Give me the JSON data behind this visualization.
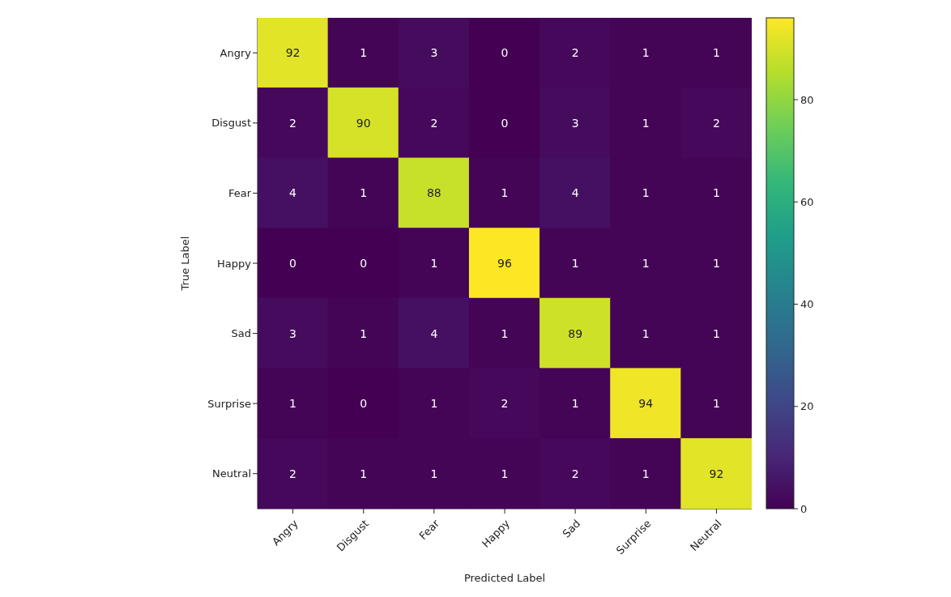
{
  "chart_data": {
    "type": "heatmap",
    "xlabel": "Predicted Label",
    "ylabel": "True Label",
    "categories": [
      "Angry",
      "Disgust",
      "Fear",
      "Happy",
      "Sad",
      "Surprise",
      "Neutral"
    ],
    "y_categories": [
      "Angry",
      "Disgust",
      "Fear",
      "Happy",
      "Sad",
      "Surprise",
      "Neutral"
    ],
    "cells": [
      [
        92,
        1,
        3,
        0,
        2,
        1,
        1
      ],
      [
        2,
        90,
        2,
        0,
        3,
        1,
        2
      ],
      [
        4,
        1,
        88,
        1,
        4,
        1,
        1
      ],
      [
        0,
        0,
        1,
        96,
        1,
        1,
        1
      ],
      [
        3,
        1,
        4,
        1,
        89,
        1,
        1
      ],
      [
        1,
        0,
        1,
        2,
        1,
        94,
        1
      ],
      [
        2,
        1,
        1,
        1,
        2,
        1,
        92
      ]
    ],
    "clim": [
      0,
      96
    ],
    "cticks": [
      0,
      20,
      40,
      60,
      80
    ],
    "data_labels": true
  }
}
